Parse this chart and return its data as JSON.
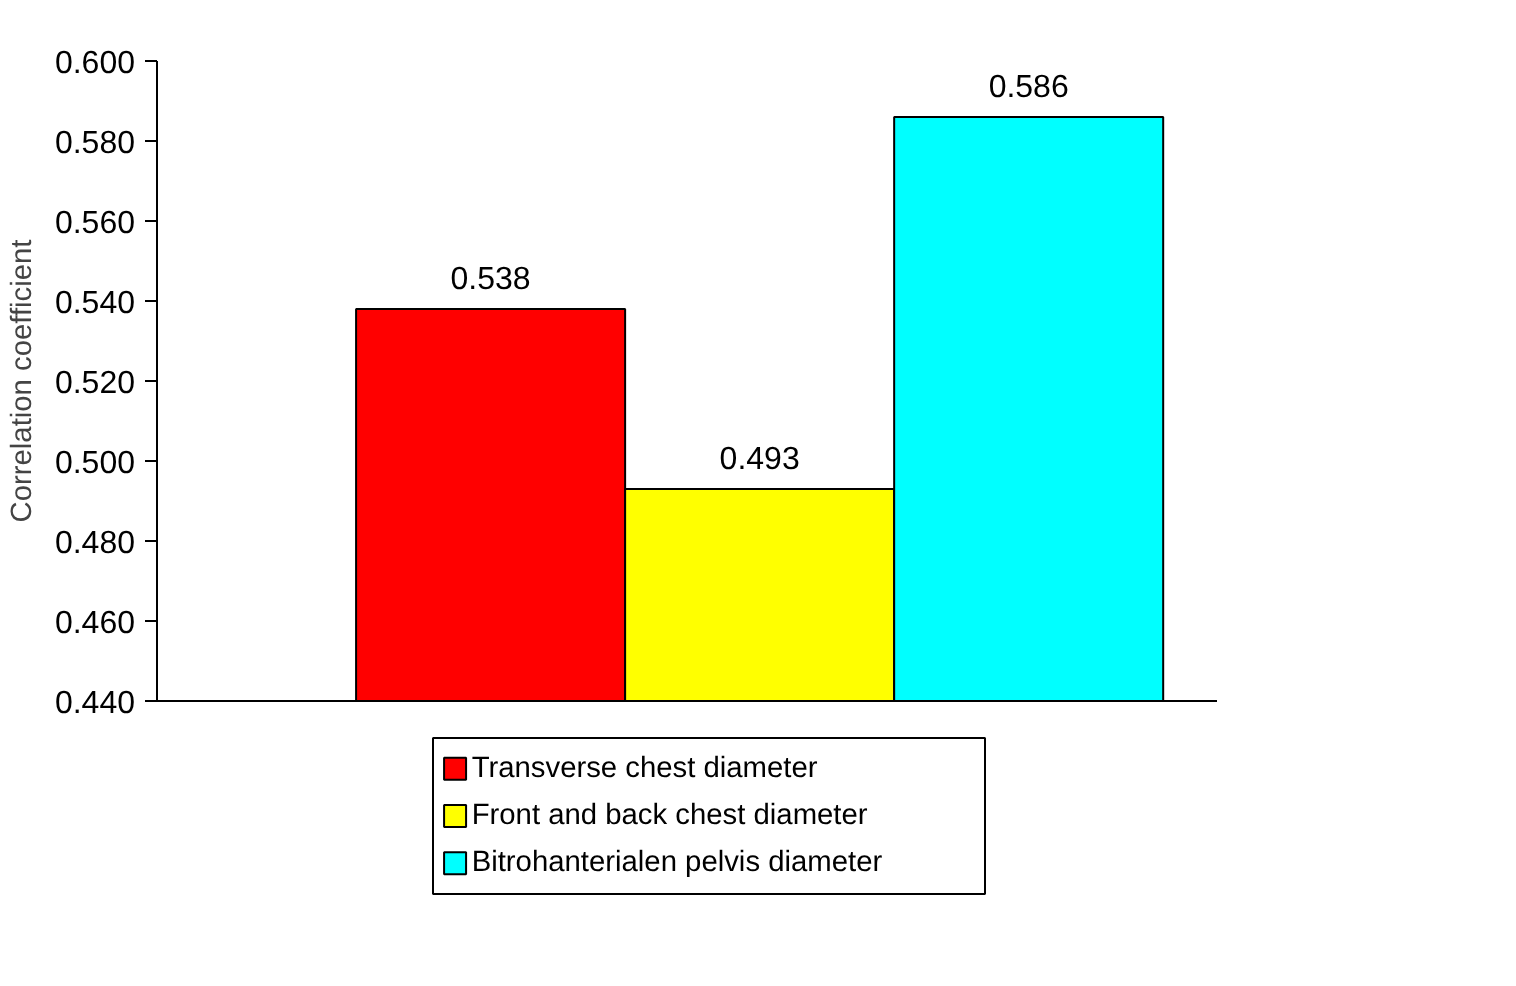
{
  "chart_data": {
    "type": "bar",
    "ylabel": "Correlation coefficient",
    "categories": [
      null
    ],
    "series": [
      {
        "name": "Transverse chest diameter",
        "color": "#ff0000",
        "values": [
          0.538
        ]
      },
      {
        "name": "Front and back chest diameter",
        "color": "#ffff00",
        "values": [
          0.493
        ]
      },
      {
        "name": "Bitrohanterialen pelvis diameter",
        "color": "#00ffff",
        "values": [
          0.586
        ]
      }
    ],
    "ylim": [
      0.44,
      0.6
    ],
    "yticks": [
      {
        "value": 0.44,
        "label": "0.440"
      },
      {
        "value": 0.46,
        "label": "0.460"
      },
      {
        "value": 0.48,
        "label": "0.480"
      },
      {
        "value": 0.5,
        "label": "0.500"
      },
      {
        "value": 0.52,
        "label": "0.520"
      },
      {
        "value": 0.54,
        "label": "0.540"
      },
      {
        "value": 0.56,
        "label": "0.560"
      },
      {
        "value": 0.58,
        "label": "0.580"
      },
      {
        "value": 0.6,
        "label": "0.600"
      }
    ],
    "data_labels": true,
    "grid": false,
    "legend": "bottom"
  }
}
